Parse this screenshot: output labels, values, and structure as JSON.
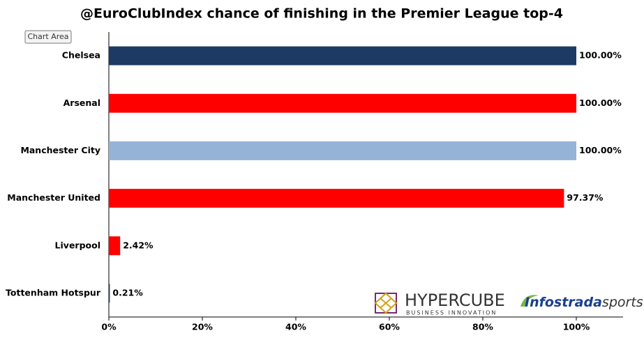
{
  "chart_data": {
    "type": "hbar",
    "title": "@EuroClubIndex chance of finishing in the Premier League top-4",
    "categories": [
      "Chelsea",
      "Arsenal",
      "Manchester City",
      "Manchester United",
      "Liverpool",
      "Tottenham Hotspur"
    ],
    "values": [
      100,
      100,
      100,
      97.37,
      2.42,
      0.21
    ],
    "value_labels": [
      "100.00%",
      "100.00%",
      "100.00%",
      "97.37%",
      "2.42%",
      "0.21%"
    ],
    "colors": [
      "#1c3a63",
      "#ff0000",
      "#95b3d7",
      "#ff0000",
      "#ff0000",
      "#1c3a63"
    ],
    "xlim": [
      0,
      110
    ],
    "xticks": [
      {
        "value": 0,
        "label": "0%"
      },
      {
        "value": 20,
        "label": "20%"
      },
      {
        "value": 40,
        "label": "40%"
      },
      {
        "value": 60,
        "label": "60%"
      },
      {
        "value": 80,
        "label": "80%"
      },
      {
        "value": 100,
        "label": "100%"
      }
    ]
  },
  "tooltip": "Chart Area",
  "logos": {
    "hypercube": "HYPERCUBE",
    "hypercube_tagline": "BUSINESS INNOVATION",
    "infostrada": "Infostrada",
    "infostrada_suffix": "sports"
  }
}
